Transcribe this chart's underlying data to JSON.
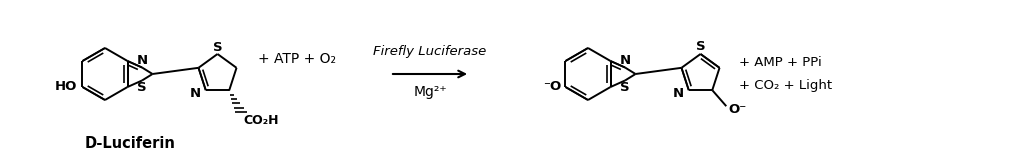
{
  "bg_color": "#ffffff",
  "line_color": "#000000",
  "figsize": [
    10.24,
    1.62
  ],
  "dpi": 100,
  "label_dluciferin": "D-Luciferin",
  "label_enzyme_top": "Firefly Luciferase",
  "label_mg": "Mg",
  "label_atp": "+ ATP + O",
  "label_products_1": "+ AMP + PPi",
  "label_products_2": "+ CO₂ + Light",
  "font_size": 9.5
}
